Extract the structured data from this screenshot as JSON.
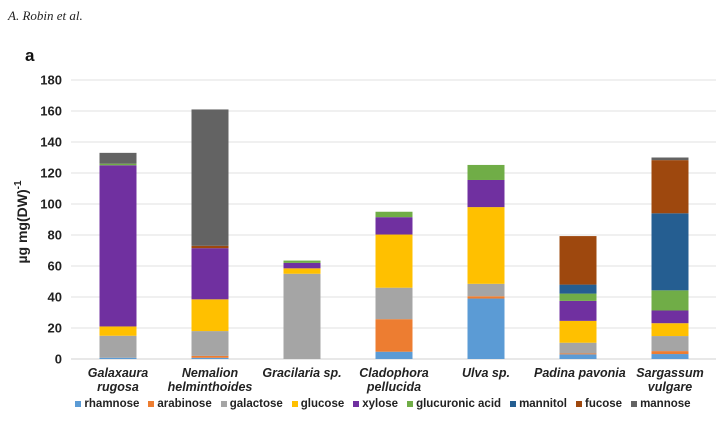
{
  "header": {
    "author": "A. Robin et al.",
    "panel_label": "a"
  },
  "chart_data": {
    "type": "bar",
    "stacked": true,
    "title": "",
    "xlabel": "",
    "ylabel": "µg mg(DW)",
    "ylabel_superscript": "-1",
    "ylim": [
      0,
      180
    ],
    "yticks": [
      0,
      20,
      40,
      60,
      80,
      100,
      120,
      140,
      160,
      180
    ],
    "grid": true,
    "legend_position": "bottom",
    "categories": [
      [
        "Galaxaura",
        "rugosa"
      ],
      [
        "Nemalion",
        "helminthoides"
      ],
      [
        "Gracilaria sp."
      ],
      [
        "Cladophora",
        "pellucida"
      ],
      [
        "Ulva sp."
      ],
      [
        "Padina pavonia"
      ],
      [
        "Sargassum",
        "vulgare"
      ]
    ],
    "series": [
      {
        "name": "rhamnose",
        "color": "#5b9bd5",
        "values": [
          0.8,
          0.8,
          0,
          4.7,
          39,
          3,
          3.2
        ]
      },
      {
        "name": "arabinose",
        "color": "#ed7d31",
        "values": [
          0,
          1.2,
          0,
          21,
          1.5,
          0.6,
          1.9
        ]
      },
      {
        "name": "galactose",
        "color": "#a5a5a5",
        "values": [
          14.2,
          16,
          55,
          20.3,
          8,
          6.9,
          9.7
        ]
      },
      {
        "name": "glucose",
        "color": "#ffc000",
        "values": [
          6,
          20.5,
          3.5,
          34.3,
          49.5,
          14.1,
          8.3
        ]
      },
      {
        "name": "xylose",
        "color": "#7030a0",
        "values": [
          104,
          33,
          3.5,
          11.2,
          17.5,
          12.9,
          8.2
        ]
      },
      {
        "name": "glucuronic acid",
        "color": "#70ad47",
        "values": [
          1,
          0,
          1.5,
          3.5,
          9.7,
          4.7,
          13
        ]
      },
      {
        "name": "mannitol",
        "color": "#255e91",
        "values": [
          0,
          0,
          0,
          0,
          0,
          5.8,
          49.7
        ]
      },
      {
        "name": "fucose",
        "color": "#9e480e",
        "values": [
          0,
          1.5,
          0,
          0,
          0,
          31.3,
          34.3
        ]
      },
      {
        "name": "mannose",
        "color": "#636363",
        "values": [
          7,
          88,
          0,
          0,
          0,
          0,
          1.7
        ]
      }
    ]
  }
}
